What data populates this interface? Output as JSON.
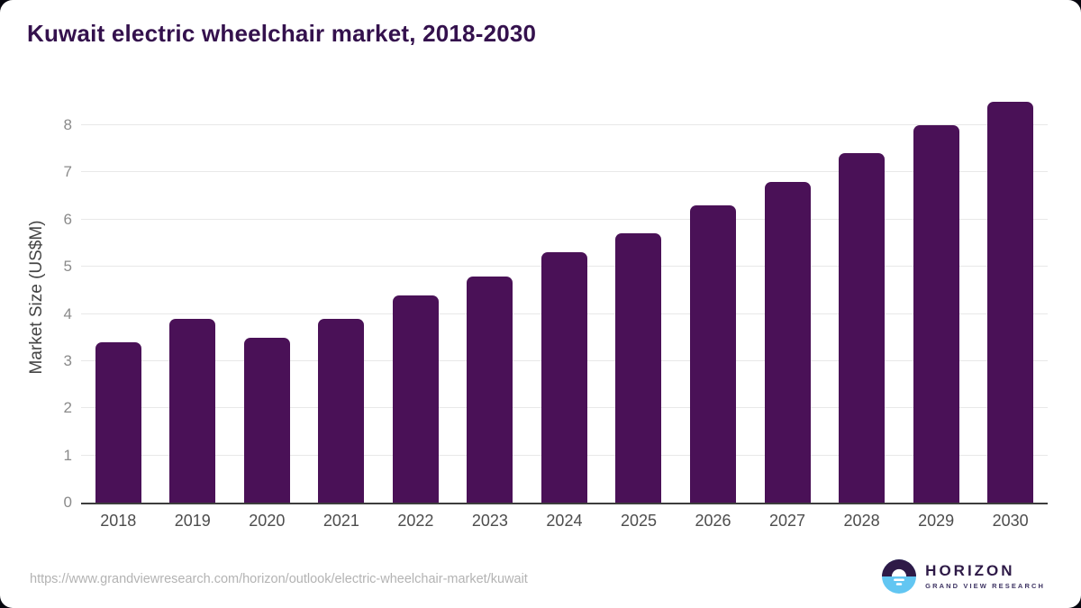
{
  "title": "Kuwait electric wheelchair market, 2018-2030",
  "source_url": "https://www.grandviewresearch.com/horizon/outlook/electric-wheelchair-market/kuwait",
  "logo": {
    "name": "HORIZON",
    "subtitle": "GRAND VIEW RESEARCH",
    "icon": "horizon-sun-over-water-icon"
  },
  "colors": {
    "bar": "#4a1157",
    "title": "#34114d",
    "grid": "#e8e8e8",
    "axis": "#3d3d3d",
    "y_tick": "#8a8a8a",
    "x_label": "#4d4d4d",
    "url": "#b3b3b3",
    "logo_purple": "#2e1a47",
    "logo_blue": "#62c6f2"
  },
  "chart_data": {
    "type": "bar",
    "title": "Kuwait electric wheelchair market, 2018-2030",
    "categories": [
      "2018",
      "2019",
      "2020",
      "2021",
      "2022",
      "2023",
      "2024",
      "2025",
      "2026",
      "2027",
      "2028",
      "2029",
      "2030"
    ],
    "values": [
      3.4,
      3.9,
      3.5,
      3.9,
      4.4,
      4.8,
      5.3,
      5.7,
      6.3,
      6.8,
      7.4,
      8.0,
      8.5
    ],
    "xlabel": "",
    "ylabel": "Market Size (US$M)",
    "ylim": [
      0,
      8.63
    ],
    "yticks": [
      0,
      1,
      2,
      3,
      4,
      5,
      6,
      7,
      8
    ],
    "grid": true,
    "legend": false,
    "bar_corner_radius": "rounded-top",
    "data_labels": false
  }
}
